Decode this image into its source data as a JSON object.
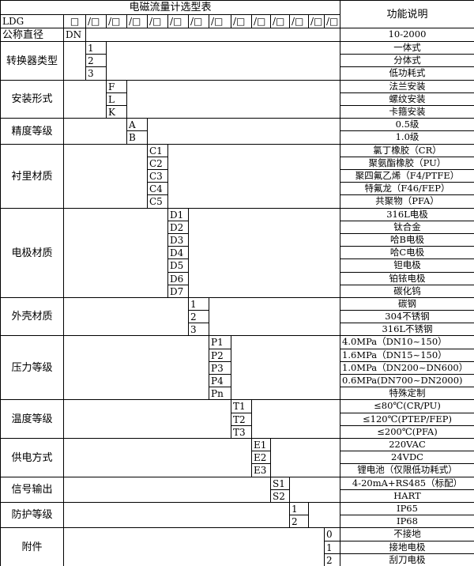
{
  "title": "电磁流量计选型表",
  "function_header": "功能说明",
  "model_row": {
    "model": "LDG",
    "slots": [
      "□",
      "/□",
      "/□",
      "/□",
      "/□",
      "/□",
      "/□",
      "/□",
      "/□",
      "/□",
      "/□",
      "/□",
      "/□",
      "/□"
    ]
  },
  "nominal": {
    "label": "公称直径",
    "code": "DN",
    "desc": "10-2000"
  },
  "sections": [
    {
      "label": "转换器类型",
      "codes": [
        "1",
        "2",
        "3"
      ],
      "descs": [
        "一体式",
        "分体式",
        "低功耗式"
      ]
    },
    {
      "label": "安装形式",
      "codes": [
        "F",
        "L",
        "K"
      ],
      "descs": [
        "法兰安装",
        "螺纹安装",
        "卡箍安装"
      ]
    },
    {
      "label": "精度等级",
      "codes": [
        "A",
        "B"
      ],
      "descs": [
        "0.5级",
        "1.0级"
      ]
    },
    {
      "label": "衬里材质",
      "codes": [
        "C1",
        "C2",
        "C3",
        "C4",
        "C5"
      ],
      "descs": [
        "氯丁橡胶（CR）",
        "聚氨酯橡胶（PU）",
        "聚四氟乙烯（F4/PTFE）",
        "特氟龙（F46/FEP）",
        "共聚物（PFA）"
      ]
    },
    {
      "label": "电极材质",
      "codes": [
        "D1",
        "D2",
        "D3",
        "D4",
        "D5",
        "D6",
        "D7"
      ],
      "descs": [
        "316L电极",
        "钛合金",
        "哈B电极",
        "哈C电极",
        "钽电极",
        "铂铱电极",
        "碳化钨"
      ]
    },
    {
      "label": "外壳材质",
      "codes": [
        "1",
        "2",
        "3"
      ],
      "descs": [
        "碳钢",
        "304不锈钢",
        "316L不锈钢"
      ]
    },
    {
      "label": "压力等级",
      "codes": [
        "P1",
        "P2",
        "P3",
        "P4",
        "Pn"
      ],
      "descs": [
        "4.0MPa（DN10~150）",
        "1.6MPa（DN15~150）",
        "1.0MPa（DN200~DN600）",
        "0.6MPa(DN700~DN2000)",
        "特殊定制"
      ]
    },
    {
      "label": "温度等级",
      "codes": [
        "T1",
        "T2",
        "T3"
      ],
      "descs": [
        "≤80℃(CR/PU)",
        "≤120℃(PTEP/FEP)",
        "≤200℃(PFA)"
      ]
    },
    {
      "label": "供电方式",
      "codes": [
        "E1",
        "E2",
        "E3"
      ],
      "descs": [
        "220VAC",
        "24VDC",
        "锂电池（仅限低功耗式）"
      ]
    },
    {
      "label": "信号输出",
      "codes": [
        "S1",
        "S2"
      ],
      "descs": [
        "4-20mA+RS485（标配）",
        "HART"
      ]
    },
    {
      "label": "防护等级",
      "codes": [
        "1",
        "2"
      ],
      "descs": [
        "IP65",
        "IP68"
      ]
    },
    {
      "label": "附件",
      "codes": [
        "0",
        "1",
        "2"
      ],
      "descs": [
        "不接地",
        "接地电极",
        "刮刀电极"
      ]
    }
  ]
}
